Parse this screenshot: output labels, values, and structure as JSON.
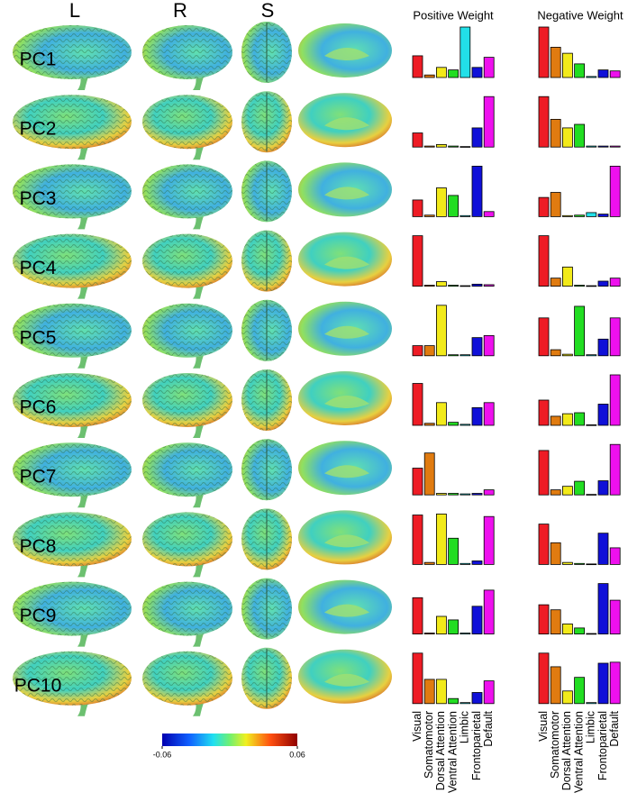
{
  "column_headers": [
    "L",
    "R",
    "S"
  ],
  "colorbar": {
    "ticks": [
      -0.06,
      0.06
    ]
  },
  "chart_data": [
    {
      "type": "bar",
      "title": "Positive Weight",
      "categories": [
        "Visual",
        "Somatomotor",
        "Dorsal Attention",
        "Ventral Attention",
        "Limbic",
        "Frontoparietal",
        "Default"
      ],
      "colors": [
        "#ee1c25",
        "#e07b10",
        "#f2ea1a",
        "#22dd22",
        "#22e0e8",
        "#1010d8",
        "#ee10ee"
      ],
      "ylim": [
        0,
        1
      ],
      "series": [
        {
          "name": "PC1",
          "values": [
            0.43,
            0.05,
            0.2,
            0.15,
            1.0,
            0.2,
            0.4
          ]
        },
        {
          "name": "PC2",
          "values": [
            0.28,
            0.02,
            0.05,
            0.02,
            0.01,
            0.38,
            1.0
          ]
        },
        {
          "name": "PC3",
          "values": [
            0.33,
            0.03,
            0.57,
            0.42,
            0.02,
            1.0,
            0.1
          ]
        },
        {
          "name": "PC4",
          "values": [
            1.0,
            0.02,
            0.09,
            0.02,
            0.01,
            0.04,
            0.03
          ]
        },
        {
          "name": "PC5",
          "values": [
            0.2,
            0.2,
            1.0,
            0.02,
            0.02,
            0.36,
            0.4
          ]
        },
        {
          "name": "PC6",
          "values": [
            0.83,
            0.04,
            0.45,
            0.06,
            0.02,
            0.35,
            0.45
          ]
        },
        {
          "name": "PC7",
          "values": [
            0.53,
            0.83,
            0.03,
            0.03,
            0.02,
            0.03,
            0.1
          ]
        },
        {
          "name": "PC8",
          "values": [
            0.98,
            0.04,
            1.0,
            0.52,
            0.02,
            0.07,
            0.95
          ]
        },
        {
          "name": "PC9",
          "values": [
            0.72,
            0.02,
            0.35,
            0.28,
            0.02,
            0.55,
            0.87
          ]
        },
        {
          "name": "PC10",
          "values": [
            1.0,
            0.48,
            0.48,
            0.1,
            0.02,
            0.22,
            0.45
          ]
        }
      ]
    },
    {
      "type": "bar",
      "title": "Negative Weight",
      "categories": [
        "Visual",
        "Somatomotor",
        "Dorsal Attention",
        "Ventral Attention",
        "Limbic",
        "Frontoparietal",
        "Default"
      ],
      "colors": [
        "#ee1c25",
        "#e07b10",
        "#f2ea1a",
        "#22dd22",
        "#22e0e8",
        "#1010d8",
        "#ee10ee"
      ],
      "ylim": [
        0,
        1
      ],
      "series": [
        {
          "name": "PC1",
          "values": [
            1.0,
            0.6,
            0.48,
            0.27,
            0.02,
            0.15,
            0.13
          ]
        },
        {
          "name": "PC2",
          "values": [
            1.0,
            0.55,
            0.38,
            0.45,
            0.02,
            0.02,
            0.02
          ]
        },
        {
          "name": "PC3",
          "values": [
            0.38,
            0.48,
            0.02,
            0.03,
            0.08,
            0.05,
            1.0
          ]
        },
        {
          "name": "PC4",
          "values": [
            1.0,
            0.16,
            0.38,
            0.02,
            0.01,
            0.1,
            0.16
          ]
        },
        {
          "name": "PC5",
          "values": [
            0.75,
            0.12,
            0.03,
            0.98,
            0.02,
            0.33,
            0.75
          ]
        },
        {
          "name": "PC6",
          "values": [
            0.5,
            0.18,
            0.23,
            0.25,
            0.01,
            0.42,
            1.0
          ]
        },
        {
          "name": "PC7",
          "values": [
            0.88,
            0.1,
            0.17,
            0.27,
            0.01,
            0.28,
            1.0
          ]
        },
        {
          "name": "PC8",
          "values": [
            0.8,
            0.43,
            0.04,
            0.02,
            0.01,
            0.62,
            0.33
          ]
        },
        {
          "name": "PC9",
          "values": [
            0.58,
            0.48,
            0.2,
            0.12,
            0.01,
            1.0,
            0.67
          ]
        },
        {
          "name": "PC10",
          "values": [
            1.0,
            0.73,
            0.25,
            0.52,
            0.02,
            0.8,
            0.82
          ]
        }
      ]
    }
  ]
}
